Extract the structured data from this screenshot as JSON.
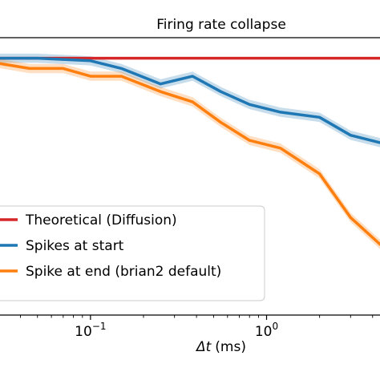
{
  "chart_data": {
    "type": "line",
    "title": "Firing rate collapse",
    "xlabel_var": "Δt",
    "xlabel_unit": "(ms)",
    "ylabel": "",
    "x_scale": "log",
    "xlim": [
      0.03,
      4.5
    ],
    "ylim": [
      0,
      1.08
    ],
    "x_ticks": [
      {
        "value": 0.1,
        "base": "10",
        "exp": "−1"
      },
      {
        "value": 1,
        "base": "10",
        "exp": "0"
      }
    ],
    "grid": false,
    "legend_position": "lower-left",
    "series": [
      {
        "name": "Theoretical (Diffusion)",
        "color": "#d62728",
        "band": false,
        "x": [
          0.03,
          4.5
        ],
        "y": [
          1.0,
          1.0
        ]
      },
      {
        "name": "Spikes at start",
        "color": "#1f77b4",
        "band": true,
        "x": [
          0.03,
          0.05,
          0.1,
          0.15,
          0.25,
          0.38,
          0.55,
          0.8,
          1.2,
          2.0,
          3.0,
          4.5
        ],
        "y": [
          1.0,
          1.0,
          0.99,
          0.96,
          0.9,
          0.93,
          0.87,
          0.82,
          0.79,
          0.77,
          0.7,
          0.67
        ]
      },
      {
        "name": "Spike at end (brian2 default)",
        "color": "#ff7f0e",
        "band": true,
        "x": [
          0.03,
          0.045,
          0.07,
          0.1,
          0.15,
          0.25,
          0.38,
          0.55,
          0.8,
          1.2,
          2.0,
          3.0,
          4.5
        ],
        "y": [
          0.98,
          0.96,
          0.96,
          0.93,
          0.93,
          0.87,
          0.83,
          0.75,
          0.68,
          0.65,
          0.55,
          0.38,
          0.27
        ]
      }
    ]
  }
}
